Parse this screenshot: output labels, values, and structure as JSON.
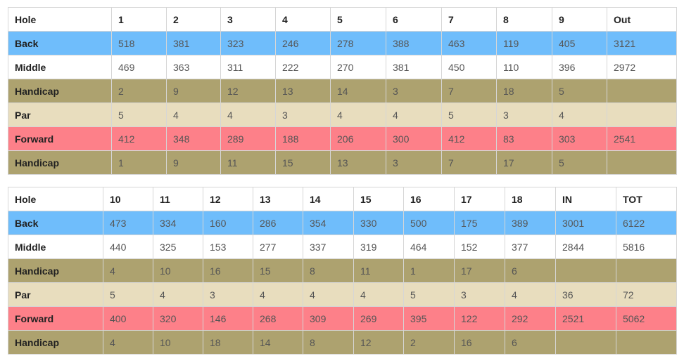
{
  "front": {
    "header": [
      "Hole",
      "1",
      "2",
      "3",
      "4",
      "5",
      "6",
      "7",
      "8",
      "9",
      "Out"
    ],
    "rows": [
      {
        "key": "back",
        "cells": [
          "Back",
          "518",
          "381",
          "323",
          "246",
          "278",
          "388",
          "463",
          "119",
          "405",
          "3121"
        ]
      },
      {
        "key": "middle",
        "cells": [
          "Middle",
          "469",
          "363",
          "311",
          "222",
          "270",
          "381",
          "450",
          "110",
          "396",
          "2972"
        ]
      },
      {
        "key": "hcp",
        "cells": [
          "Handicap",
          "2",
          "9",
          "12",
          "13",
          "14",
          "3",
          "7",
          "18",
          "5",
          ""
        ]
      },
      {
        "key": "par",
        "cells": [
          "Par",
          "5",
          "4",
          "4",
          "3",
          "4",
          "4",
          "5",
          "3",
          "4",
          ""
        ]
      },
      {
        "key": "fwd",
        "cells": [
          "Forward",
          "412",
          "348",
          "289",
          "188",
          "206",
          "300",
          "412",
          "83",
          "303",
          "2541"
        ]
      },
      {
        "key": "hcp",
        "cells": [
          "Handicap",
          "1",
          "9",
          "11",
          "15",
          "13",
          "3",
          "7",
          "17",
          "5",
          ""
        ]
      }
    ]
  },
  "back": {
    "header": [
      "Hole",
      "10",
      "11",
      "12",
      "13",
      "14",
      "15",
      "16",
      "17",
      "18",
      "IN",
      "TOT"
    ],
    "rows": [
      {
        "key": "back",
        "cells": [
          "Back",
          "473",
          "334",
          "160",
          "286",
          "354",
          "330",
          "500",
          "175",
          "389",
          "3001",
          "6122"
        ]
      },
      {
        "key": "middle",
        "cells": [
          "Middle",
          "440",
          "325",
          "153",
          "277",
          "337",
          "319",
          "464",
          "152",
          "377",
          "2844",
          "5816"
        ]
      },
      {
        "key": "hcp",
        "cells": [
          "Handicap",
          "4",
          "10",
          "16",
          "15",
          "8",
          "11",
          "1",
          "17",
          "6",
          "",
          ""
        ]
      },
      {
        "key": "par",
        "cells": [
          "Par",
          "5",
          "4",
          "3",
          "4",
          "4",
          "4",
          "5",
          "3",
          "4",
          "36",
          "72"
        ]
      },
      {
        "key": "fwd",
        "cells": [
          "Forward",
          "400",
          "320",
          "146",
          "268",
          "309",
          "269",
          "395",
          "122",
          "292",
          "2521",
          "5062"
        ]
      },
      {
        "key": "hcp",
        "cells": [
          "Handicap",
          "4",
          "10",
          "18",
          "14",
          "8",
          "12",
          "2",
          "16",
          "6",
          "",
          ""
        ]
      }
    ]
  },
  "colors": {
    "back": "#6fbdfb",
    "middle": "#ffffff",
    "handicap": "#ada26f",
    "par": "#e8ddbe",
    "forward": "#fd8089"
  }
}
